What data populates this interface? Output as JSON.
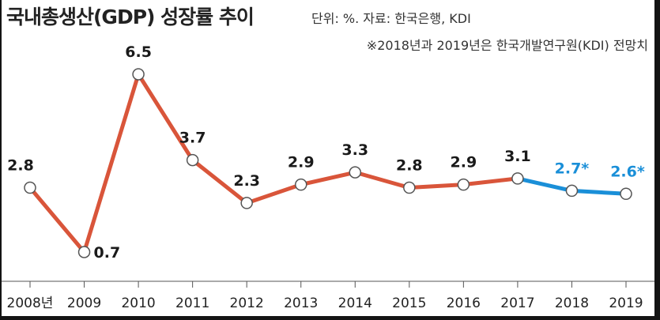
{
  "chart_data": {
    "type": "line",
    "title": "국내총생산(GDP) 성장률 추이",
    "source": "단위: %. 자료: 한국은행, KDI",
    "note": "※2018년과 2019년은 한국개발연구원(KDI) 전망치",
    "categories": [
      "2008년",
      "2009",
      "2010",
      "2011",
      "2012",
      "2013",
      "2014",
      "2015",
      "2016",
      "2017",
      "2018",
      "2019"
    ],
    "values": [
      2.8,
      0.7,
      6.5,
      3.7,
      2.3,
      2.9,
      3.3,
      2.8,
      2.9,
      3.1,
      2.7,
      2.6
    ],
    "value_labels": [
      "2.8",
      "0.7",
      "6.5",
      "3.7",
      "2.3",
      "2.9",
      "3.3",
      "2.8",
      "2.9",
      "3.1",
      "2.7*",
      "2.6*"
    ],
    "projected_from_index": 9,
    "colors": {
      "actual": "#d9553a",
      "projected": "#1a8fd8",
      "projected_label": "#1a8fd8"
    },
    "grid": false
  }
}
